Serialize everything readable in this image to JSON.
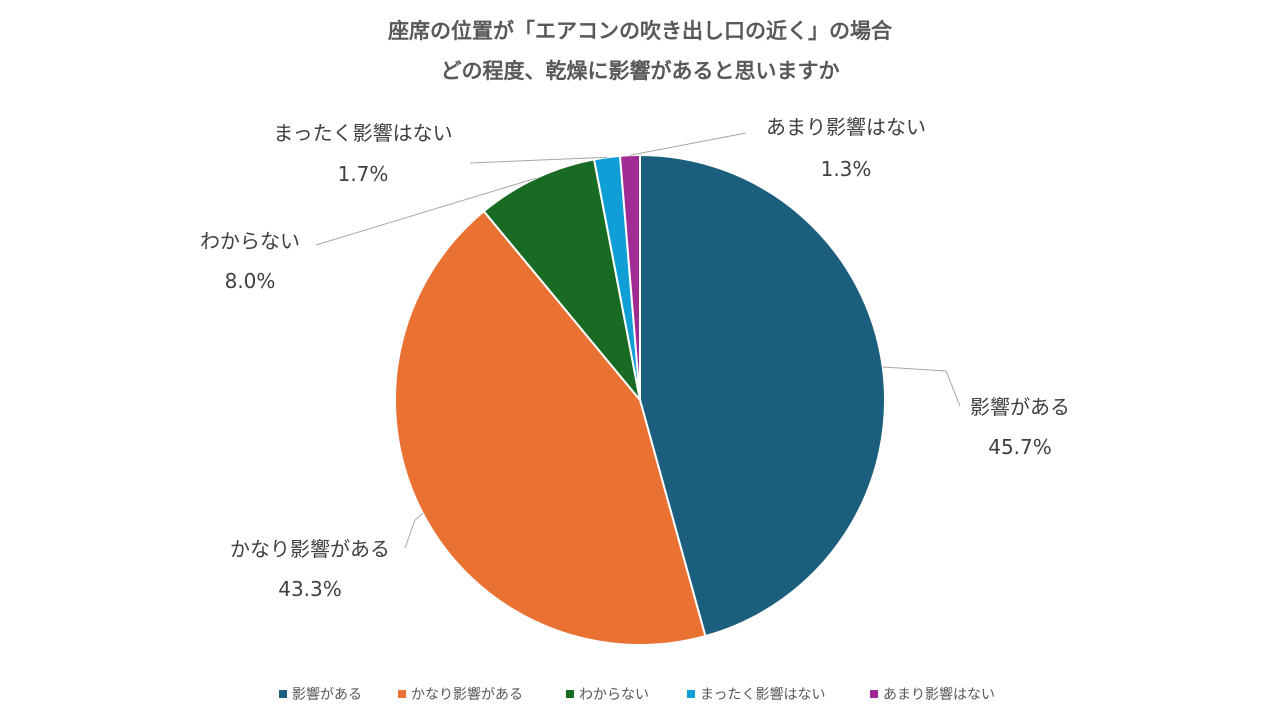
{
  "chart_data": {
    "type": "pie",
    "title_line1": "座席の位置が「エアコンの吹き出し口の近く」の場合",
    "title_line2": "どの程度、乾燥に影響があると思いますか",
    "slices": [
      {
        "label": "影響がある",
        "value": 45.7,
        "value_label": "45.7%",
        "color": "#1b5e7e"
      },
      {
        "label": "かなり影響がある",
        "value": 43.3,
        "value_label": "43.3%",
        "color": "#e97132"
      },
      {
        "label": "わからない",
        "value": 8.0,
        "value_label": "8.0%",
        "color": "#196b24"
      },
      {
        "label": "まったく影響はない",
        "value": 1.7,
        "value_label": "1.7%",
        "color": "#0f9ed5"
      },
      {
        "label": "あまり影響はない",
        "value": 1.3,
        "value_label": "1.3%",
        "color": "#a02b93"
      }
    ],
    "legend_position": "bottom"
  }
}
